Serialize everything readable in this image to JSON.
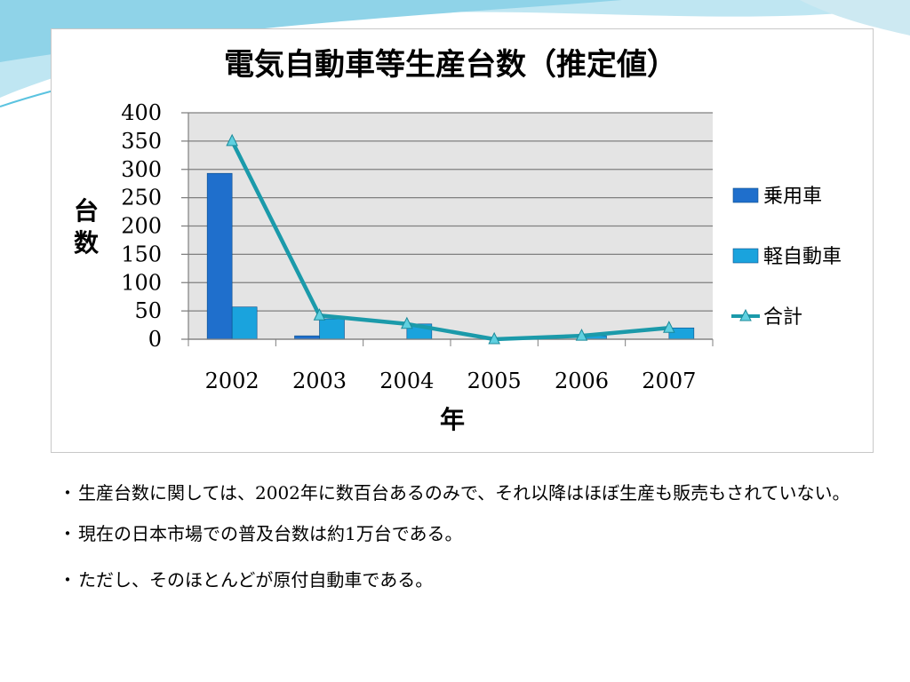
{
  "chart_data": {
    "type": "bar",
    "title": "電気自動車等生産台数（推定値）",
    "xlabel": "年",
    "ylabel": "台数",
    "categories": [
      "2002",
      "2003",
      "2004",
      "2005",
      "2006",
      "2007"
    ],
    "series": [
      {
        "name": "乗用車",
        "type": "bar",
        "values": [
          293,
          6,
          0,
          0,
          0,
          0
        ],
        "color": "#1f6fcc"
      },
      {
        "name": "軽自動車",
        "type": "bar",
        "values": [
          57,
          36,
          27,
          0,
          6,
          20
        ],
        "color": "#1aa3dd"
      },
      {
        "name": "合計",
        "type": "line",
        "values": [
          350,
          42,
          27,
          0,
          6,
          20
        ],
        "color": "#1b9aaa"
      }
    ],
    "ylim": [
      0,
      400
    ],
    "yticks": [
      "400",
      "350",
      "300",
      "250",
      "200",
      "150",
      "100",
      "50",
      "0"
    ],
    "grid": true,
    "legend": "right",
    "plot_background": "#e4e4e4"
  },
  "notes": [
    {
      "bullet": "・",
      "text": "生産台数に関しては、2002年に数百台あるのみで、それ以降はほぼ生産も販売もされていない。"
    },
    {
      "bullet": "・",
      "text": "現在の日本市場での普及台数は約1万台である。"
    },
    {
      "bullet": "・",
      "text": "ただし、そのほとんどが原付自動車である。"
    }
  ],
  "theme": {
    "accent": "#5bc3e0",
    "background": "#ffffff"
  }
}
